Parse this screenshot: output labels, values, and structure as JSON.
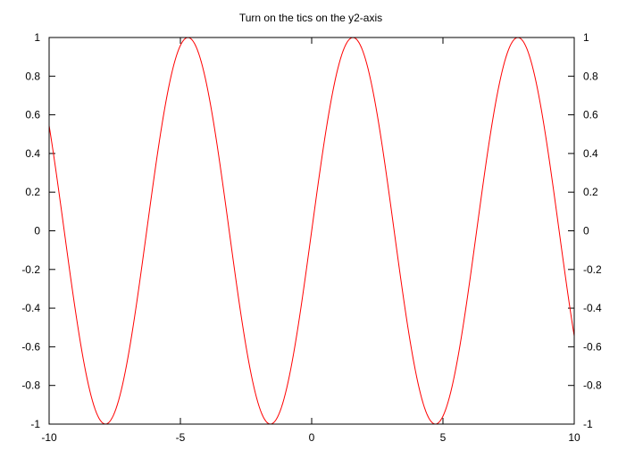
{
  "chart_data": {
    "type": "line",
    "title": "Turn on the tics on the y2-axis",
    "xlabel": "",
    "ylabel": "",
    "y2label": "",
    "xlim": [
      -10,
      10
    ],
    "ylim": [
      -1,
      1
    ],
    "y2lim": [
      -1,
      1
    ],
    "x_ticks": [
      -10,
      -5,
      0,
      5,
      10
    ],
    "x_tick_labels": [
      "-10",
      "-5",
      "0",
      "5",
      "10"
    ],
    "y_ticks": [
      -1,
      -0.8,
      -0.6,
      -0.4,
      -0.2,
      0,
      0.2,
      0.4,
      0.6,
      0.8,
      1
    ],
    "y_tick_labels": [
      "-1",
      "-0.8",
      "-0.6",
      "-0.4",
      "-0.2",
      "0",
      "0.2",
      "0.4",
      "0.6",
      "0.8",
      "1"
    ],
    "y2_ticks": [
      -1,
      -0.8,
      -0.6,
      -0.4,
      -0.2,
      0,
      0.2,
      0.4,
      0.6,
      0.8,
      1
    ],
    "y2_tick_labels": [
      "-1",
      "-0.8",
      "-0.6",
      "-0.4",
      "-0.2",
      "0",
      "0.2",
      "0.4",
      "0.6",
      "0.8",
      "1"
    ],
    "grid": false,
    "legend": false,
    "series": [
      {
        "function": "sin(x)",
        "color": "#ff0000",
        "x": [
          -10,
          -9.5,
          -9,
          -8.5,
          -8,
          -7.854,
          -7.5,
          -7,
          -6.5,
          -6,
          -5.5,
          -5,
          -4.712,
          -4.5,
          -4,
          -3.5,
          -3,
          -2.5,
          -2,
          -1.571,
          -1.5,
          -1,
          -0.5,
          0,
          0.5,
          1,
          1.5,
          1.571,
          2,
          2.5,
          3,
          3.5,
          4,
          4.5,
          4.712,
          5,
          5.5,
          6,
          6.5,
          7,
          7.5,
          7.854,
          8,
          8.5,
          9,
          9.5,
          10
        ],
        "y": [
          0.544,
          0.075,
          -0.412,
          -0.798,
          -0.989,
          -1.0,
          -0.938,
          -0.657,
          -0.215,
          0.279,
          0.706,
          0.959,
          1.0,
          0.978,
          0.757,
          0.351,
          -0.141,
          -0.598,
          -0.909,
          -1.0,
          -0.997,
          -0.841,
          -0.479,
          0.0,
          0.479,
          0.841,
          0.997,
          1.0,
          0.909,
          0.598,
          0.141,
          -0.351,
          -0.757,
          -0.978,
          -1.0,
          -0.959,
          -0.706,
          -0.279,
          0.215,
          0.657,
          0.938,
          1.0,
          0.989,
          0.798,
          0.412,
          -0.075,
          -0.544
        ]
      }
    ]
  }
}
